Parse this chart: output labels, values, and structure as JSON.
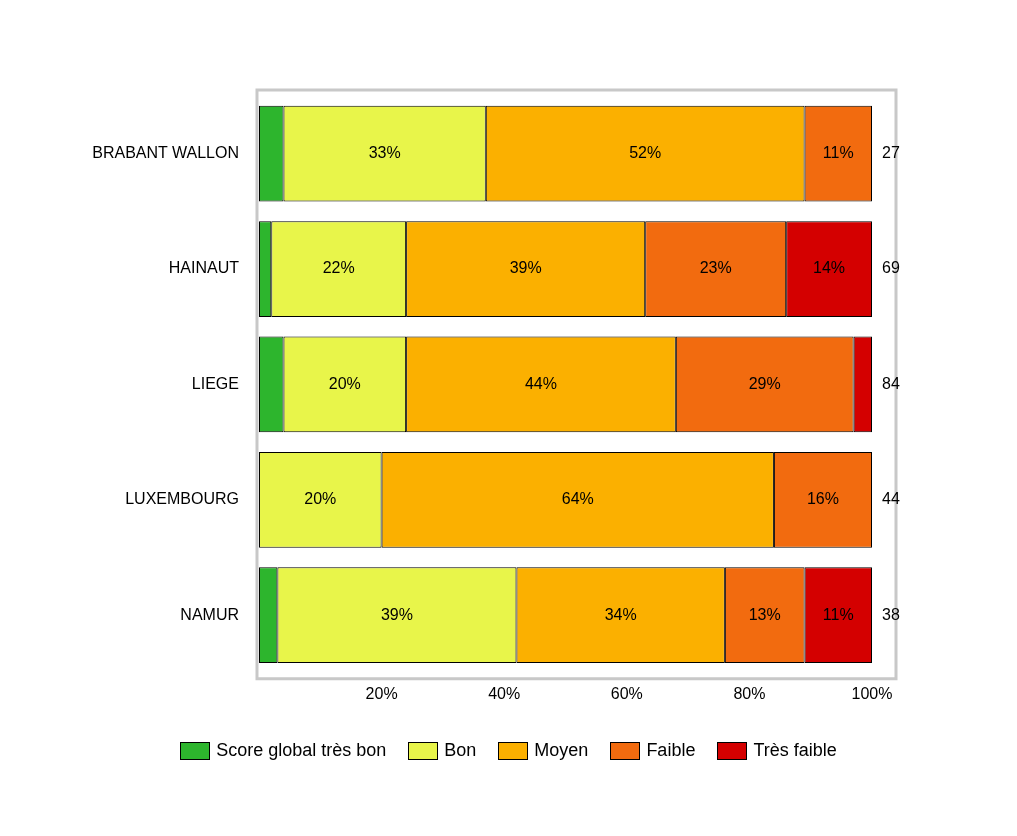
{
  "chart_data": {
    "type": "bar",
    "orientation": "horizontal",
    "stacked": true,
    "categories": [
      "BRABANT WALLON",
      "HAINAUT",
      "LIEGE",
      "LUXEMBOURG",
      "NAMUR"
    ],
    "series": [
      {
        "name": "Score global très bon",
        "color": "#2db52d",
        "values": [
          4,
          2,
          4,
          0,
          3
        ],
        "value_labels": [
          null,
          null,
          null,
          null,
          null
        ]
      },
      {
        "name": "Bon",
        "color": "#e8f54a",
        "values": [
          33,
          22,
          20,
          20,
          39
        ],
        "value_labels": [
          "33%",
          "22%",
          "20%",
          "20%",
          "39%"
        ]
      },
      {
        "name": "Moyen",
        "color": "#fbb000",
        "values": [
          52,
          39,
          44,
          64,
          34
        ],
        "value_labels": [
          "52%",
          "39%",
          "44%",
          "64%",
          "34%"
        ]
      },
      {
        "name": "Faible",
        "color": "#f26b0f",
        "values": [
          11,
          23,
          29,
          16,
          13
        ],
        "value_labels": [
          "11%",
          "23%",
          "29%",
          "16%",
          "13%"
        ]
      },
      {
        "name": "Très faible",
        "color": "#d40000",
        "values": [
          0,
          14,
          3,
          0,
          11
        ],
        "value_labels": [
          null,
          "14%",
          null,
          null,
          "11%"
        ]
      }
    ],
    "annotations": [
      "27",
      "69",
      "84",
      "44",
      "38"
    ],
    "xlim": [
      0,
      100
    ],
    "xticks": [
      {
        "value": 20,
        "label": "20%"
      },
      {
        "value": 40,
        "label": "40%"
      },
      {
        "value": 60,
        "label": "60%"
      },
      {
        "value": 80,
        "label": "80%"
      },
      {
        "value": 100,
        "label": "100%"
      }
    ],
    "grid": false,
    "legend": "bottom"
  }
}
